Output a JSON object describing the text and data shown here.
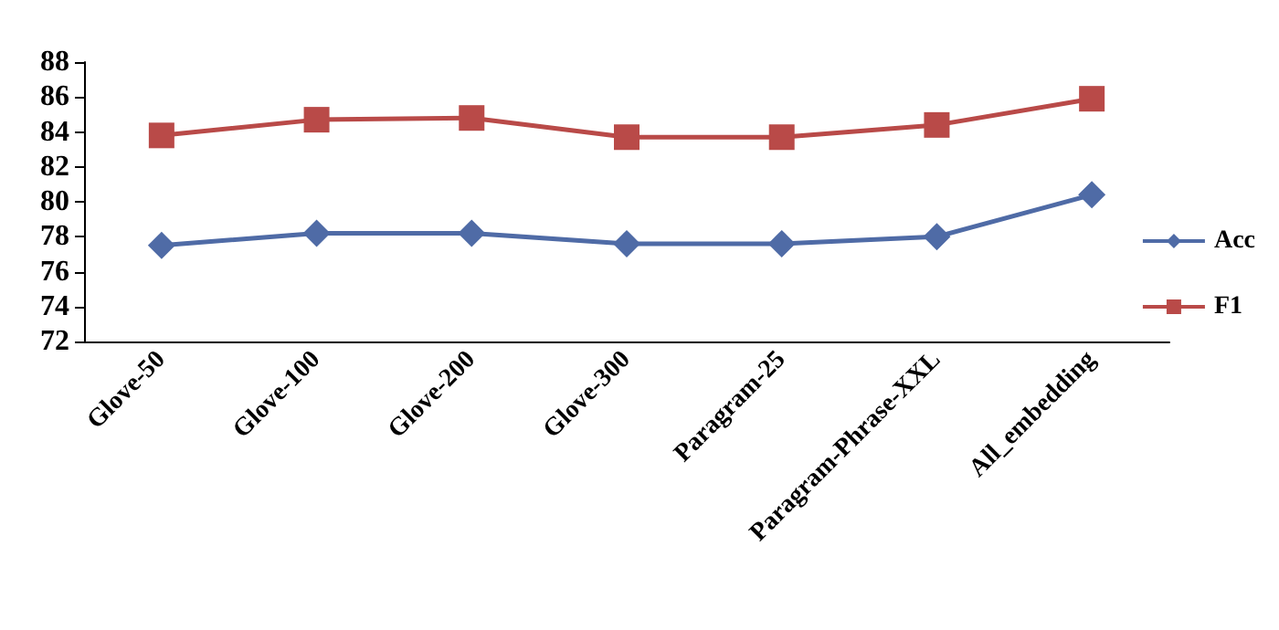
{
  "chart_data": {
    "type": "line",
    "categories": [
      "Glove-50",
      "Glove-100",
      "Glove-200",
      "Glove-300",
      "Paragram-25",
      "Paragram-Phrase-XXL",
      "All_embedding"
    ],
    "series": [
      {
        "name": "Acc",
        "color": "#4f6ba6",
        "marker": "diamond",
        "values": [
          77.5,
          78.2,
          78.2,
          77.6,
          77.6,
          78.0,
          80.4
        ]
      },
      {
        "name": "F1",
        "color": "#b94a48",
        "marker": "square",
        "values": [
          83.8,
          84.7,
          84.8,
          83.7,
          83.7,
          84.4,
          85.9
        ]
      }
    ],
    "ylim": [
      72,
      88
    ],
    "yticks": [
      72,
      74,
      76,
      78,
      80,
      82,
      84,
      86,
      88
    ],
    "grid": false,
    "legend": "right",
    "line_style": "solid"
  }
}
